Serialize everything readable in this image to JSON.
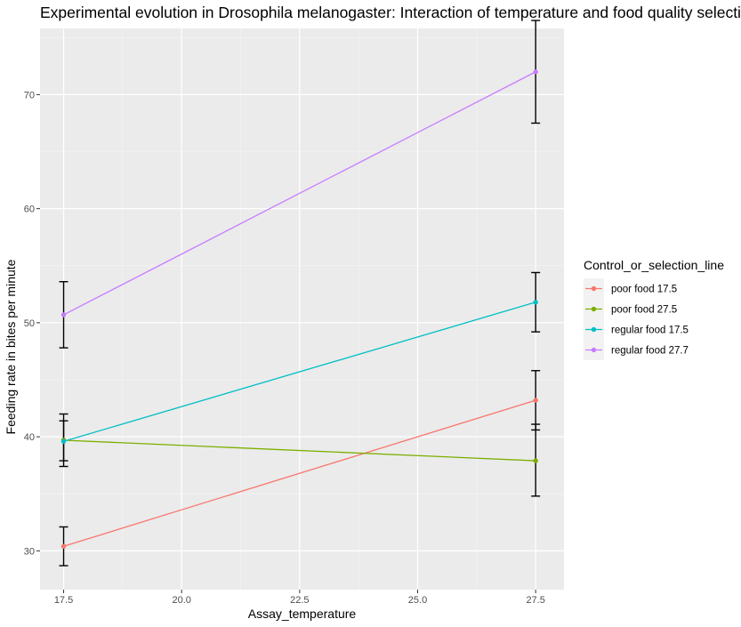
{
  "chart_data": {
    "type": "line",
    "title": "Experimental evolution in Drosophila melanogaster: Interaction of temperature and food quality selection",
    "xlabel": "Assay_temperature",
    "ylabel": "Feeding rate in bites per minute",
    "xlim": [
      17.0,
      28.1
    ],
    "ylim": [
      26.6,
      75.8
    ],
    "xticks": [
      17.5,
      20.0,
      22.5,
      25.0,
      27.5
    ],
    "xtick_labels": [
      "17.5",
      "20.0",
      "22.5",
      "25.0",
      "27.5"
    ],
    "yticks": [
      30,
      40,
      50,
      60,
      70
    ],
    "ytick_labels": [
      "30",
      "40",
      "50",
      "60",
      "70"
    ],
    "grid": true,
    "legend": {
      "title": "Control_or_selection_line",
      "position": "right"
    },
    "series": [
      {
        "name": "poor food 17.5",
        "color": "#F8766D",
        "x": [
          17.5,
          27.5
        ],
        "y": [
          30.4,
          43.2
        ],
        "err_low": [
          28.7,
          40.6
        ],
        "err_high": [
          32.1,
          45.8
        ]
      },
      {
        "name": "poor food 27.5",
        "color": "#7CAE00",
        "x": [
          17.5,
          27.5
        ],
        "y": [
          39.7,
          37.9
        ],
        "err_low": [
          37.4,
          34.8
        ],
        "err_high": [
          42.0,
          41.1
        ]
      },
      {
        "name": "regular food 17.5",
        "color": "#00BFC4",
        "x": [
          17.5,
          27.5
        ],
        "y": [
          39.6,
          51.8
        ],
        "err_low": [
          37.9,
          49.2
        ],
        "err_high": [
          41.4,
          54.4
        ]
      },
      {
        "name": "regular food 27.7",
        "color": "#C77CFF",
        "x": [
          17.5,
          27.5
        ],
        "y": [
          50.7,
          72.0
        ],
        "err_low": [
          47.8,
          67.5
        ],
        "err_high": [
          53.6,
          76.5
        ]
      }
    ]
  }
}
